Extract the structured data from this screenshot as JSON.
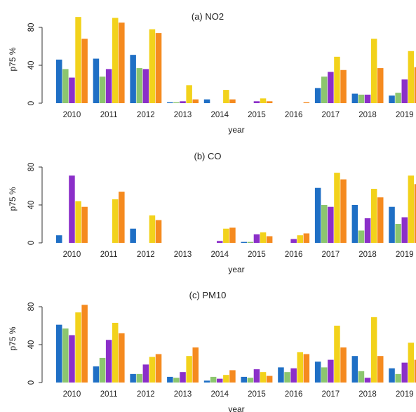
{
  "colors": [
    "#1f6fc5",
    "#8cc66e",
    "#8b2fc9",
    "#f2d21b",
    "#f58a1f"
  ],
  "chart_data": [
    {
      "type": "bar",
      "title": "(a) NO2",
      "xlabel": "year",
      "ylabel": "p75 %",
      "ylim": [
        0,
        100
      ],
      "yticks": [
        0,
        40,
        80
      ],
      "categories": [
        "2010",
        "2011",
        "2012",
        "2013",
        "2014",
        "2015",
        "2016",
        "2017",
        "2018",
        "2019"
      ],
      "series": [
        {
          "values": [
            46,
            47,
            51,
            1,
            4,
            0,
            0,
            16,
            10,
            8
          ]
        },
        {
          "values": [
            36,
            28,
            37,
            1,
            0,
            0,
            0,
            28,
            9,
            11
          ]
        },
        {
          "values": [
            27,
            36,
            36,
            2,
            0,
            2,
            0,
            33,
            9,
            25
          ]
        },
        {
          "values": [
            91,
            90,
            78,
            19,
            14,
            5,
            0,
            49,
            68,
            55
          ]
        },
        {
          "values": [
            68,
            85,
            74,
            4,
            4,
            2,
            1,
            35,
            37,
            38
          ]
        }
      ]
    },
    {
      "type": "bar",
      "title": "(b) CO",
      "xlabel": "year",
      "ylabel": "p75 %",
      "ylim": [
        0,
        100
      ],
      "yticks": [
        0,
        40,
        80
      ],
      "categories": [
        "2010",
        "2011",
        "2012",
        "2013",
        "2014",
        "2015",
        "2016",
        "2017",
        "2018",
        "2019"
      ],
      "series": [
        {
          "values": [
            8,
            0,
            15,
            0,
            0,
            1,
            0,
            58,
            40,
            38
          ]
        },
        {
          "values": [
            0,
            0,
            0,
            0,
            0,
            1,
            0,
            40,
            13,
            20
          ]
        },
        {
          "values": [
            71,
            0,
            0,
            0,
            2,
            9,
            4,
            38,
            26,
            27
          ]
        },
        {
          "values": [
            44,
            46,
            29,
            0,
            15,
            11,
            8,
            74,
            57,
            71
          ]
        },
        {
          "values": [
            38,
            54,
            24,
            0,
            16,
            7,
            10,
            67,
            48,
            62
          ]
        }
      ]
    },
    {
      "type": "bar",
      "title": "(c) PM10",
      "xlabel": "year",
      "ylabel": "p75 %",
      "ylim": [
        0,
        100
      ],
      "yticks": [
        0,
        40,
        80
      ],
      "categories": [
        "2010",
        "2011",
        "2012",
        "2013",
        "2014",
        "2015",
        "2016",
        "2017",
        "2018",
        "2019"
      ],
      "series": [
        {
          "values": [
            61,
            17,
            9,
            6,
            2,
            6,
            16,
            22,
            28,
            15
          ]
        },
        {
          "values": [
            57,
            26,
            9,
            5,
            6,
            5,
            11,
            16,
            12,
            9
          ]
        },
        {
          "values": [
            50,
            45,
            19,
            11,
            4,
            14,
            15,
            24,
            5,
            21
          ]
        },
        {
          "values": [
            74,
            63,
            27,
            28,
            8,
            11,
            32,
            60,
            69,
            42
          ]
        },
        {
          "values": [
            82,
            52,
            30,
            37,
            13,
            7,
            30,
            37,
            28,
            24
          ]
        }
      ]
    }
  ]
}
